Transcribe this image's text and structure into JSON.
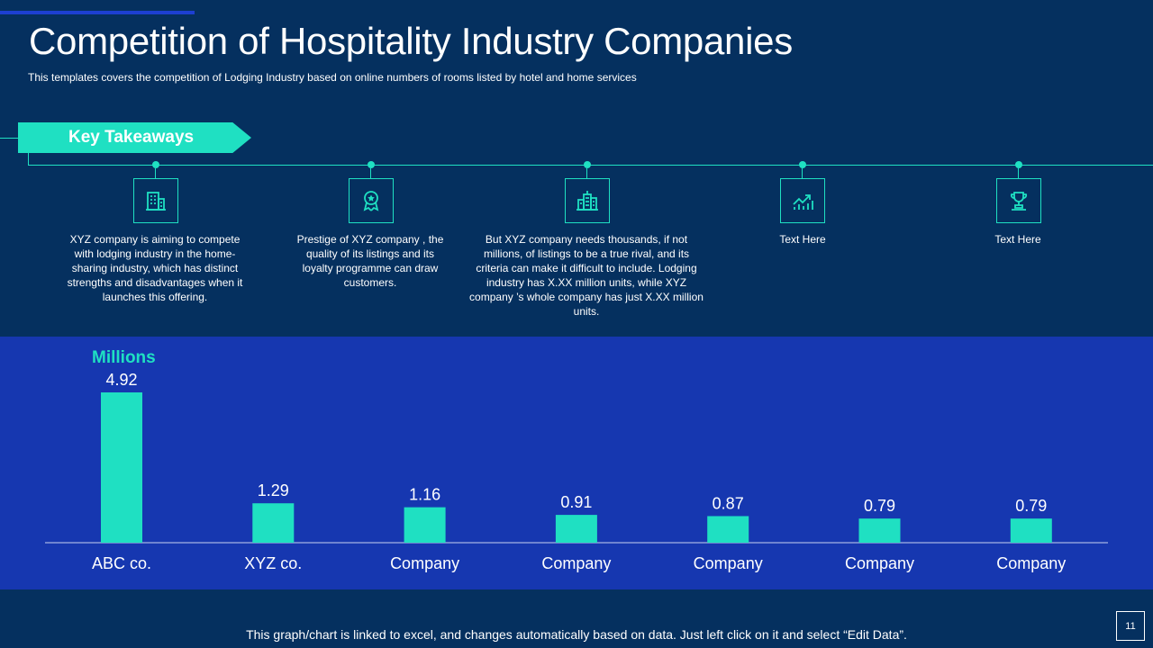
{
  "title": "Competition of Hospitality Industry Companies",
  "subtitle": "This templates covers the competition of Lodging Industry based on online numbers of rooms listed by hotel and home services",
  "banner": "Key Takeaways",
  "takeaways": [
    {
      "icon": "building-icon",
      "text": "XYZ company  is aiming to compete with lodging industry in the home-sharing industry, which has distinct strengths and disadvantages  when it launches this offering."
    },
    {
      "icon": "award-badge-icon",
      "text": "Prestige of XYZ company , the quality of its listings and its loyalty programme  can draw customers."
    },
    {
      "icon": "city-buildings-icon",
      "text": "But XYZ company  needs thousands, if not millions, of listings to be a true rival, and its criteria can make it difficult to include. Lodging industry has X.XX  million units, while XYZ company ’s whole company has just X.XX  million units."
    },
    {
      "icon": "growth-chart-icon",
      "text": "Text Here"
    },
    {
      "icon": "trophy-icon",
      "text": "Text Here"
    }
  ],
  "colors": {
    "accent": "#1fe0c2",
    "background": "#05305f",
    "panel": "#1637b0"
  },
  "chart_data": {
    "type": "bar",
    "ylabel": "Millions",
    "categories": [
      "ABC co.",
      "XYZ co.",
      "Company",
      "Company",
      "Company",
      "Company",
      "Company"
    ],
    "values": [
      4.92,
      1.29,
      1.16,
      0.91,
      0.87,
      0.79,
      0.79
    ],
    "value_labels": [
      "4.92",
      "1.29",
      "1.16",
      "0.91",
      "0.87",
      "0.79",
      "0.79"
    ],
    "ylim": [
      0,
      4.92
    ]
  },
  "footer": "This graph/chart is linked to excel, and changes automatically based on data. Just left click on it and select “Edit Data”.",
  "page_number": "11"
}
